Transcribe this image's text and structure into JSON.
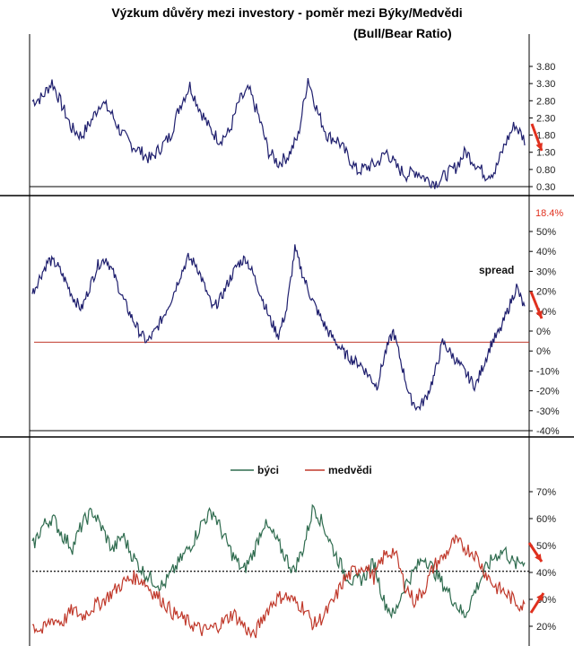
{
  "header": {
    "title_line1": "Výzkum důvěry mezi investory -  poměr mezi Býky/Medvědi",
    "title_line2": "(Bull/Bear Ratio)"
  },
  "colors": {
    "ratio_line": "#1f1f6e",
    "spread_line": "#1f1f6e",
    "bulls_line": "#2e6b4e",
    "bears_line": "#c0392b",
    "zero_line": "#c0392b",
    "arrow": "#e0301e",
    "annotation_red": "#e0301e"
  },
  "chart_data": [
    {
      "type": "line",
      "title": "",
      "series": [
        {
          "values": [
            2.5,
            2.6,
            3.0,
            2.4,
            1.8,
            1.6,
            2.0,
            2.5,
            2.2,
            1.7,
            1.4,
            1.2,
            1.0,
            1.3,
            1.6,
            2.4,
            2.9,
            2.3,
            1.8,
            1.5,
            1.7,
            2.5,
            2.8,
            2.1,
            1.2,
            0.9,
            1.1,
            1.6,
            3.1,
            2.2,
            1.6,
            1.5,
            1.1,
            0.7,
            0.8,
            0.9,
            1.2,
            0.8,
            0.6,
            0.7,
            0.5,
            0.4,
            0.6,
            0.8,
            1.2,
            0.9,
            0.6,
            0.7,
            1.4,
            1.9,
            1.5
          ]
        }
      ],
      "ylim": [
        0.3,
        4.0
      ],
      "yticks": [
        "3.80",
        "3.30",
        "2.80",
        "2.30",
        "1.80",
        "1.30",
        "0.80",
        "0.30"
      ]
    },
    {
      "type": "line",
      "title": "",
      "annotations": [
        "18.4%",
        "spread"
      ],
      "series": [
        {
          "values": [
            22,
            30,
            37,
            35,
            28,
            20,
            15,
            25,
            35,
            38,
            30,
            20,
            12,
            5,
            0,
            5,
            12,
            20,
            30,
            38,
            35,
            25,
            15,
            20,
            28,
            35,
            38,
            30,
            20,
            10,
            3,
            15,
            42,
            30,
            20,
            12,
            5,
            0,
            -5,
            -8,
            -10,
            -15,
            -20,
            -5,
            5,
            -10,
            -25,
            -30,
            -25,
            -15,
            0,
            -5,
            -10,
            -15,
            -20,
            -10,
            0,
            5,
            15,
            25,
            15
          ]
        },
        {
          "values": [
            0,
            0
          ]
        }
      ],
      "ylim": [
        -40,
        50
      ],
      "yticks": [
        "50%",
        "40%",
        "30%",
        "20%",
        "10%",
        "0%",
        "0%",
        "-10%",
        "-20%",
        "-30%",
        "-40%"
      ]
    },
    {
      "type": "line",
      "title": "",
      "series": [
        {
          "name": "býci",
          "values": [
            48,
            55,
            58,
            52,
            48,
            56,
            60,
            54,
            47,
            52,
            45,
            40,
            37,
            35,
            40,
            45,
            50,
            57,
            60,
            52,
            45,
            40,
            46,
            56,
            52,
            46,
            40,
            48,
            62,
            55,
            47,
            40,
            36,
            38,
            43,
            30,
            25,
            35,
            40,
            45,
            40,
            35,
            30,
            25,
            33,
            40,
            45,
            47,
            42,
            44
          ]
        },
        {
          "name": "medvědi",
          "values": [
            22,
            20,
            24,
            23,
            27,
            25,
            28,
            30,
            33,
            36,
            38,
            37,
            33,
            30,
            26,
            24,
            22,
            20,
            21,
            23,
            26,
            22,
            18,
            25,
            30,
            32,
            30,
            28,
            22,
            25,
            30,
            37,
            40,
            42,
            38,
            45,
            47,
            36,
            30,
            34,
            42,
            45,
            50,
            48,
            46,
            40,
            35,
            33,
            30,
            28
          ]
        },
        {
          "values": [
            40,
            40
          ]
        }
      ],
      "ylim": [
        15,
        75
      ],
      "yticks": [
        "70%",
        "60%",
        "50%",
        "40%",
        "30%",
        "20%"
      ]
    }
  ]
}
